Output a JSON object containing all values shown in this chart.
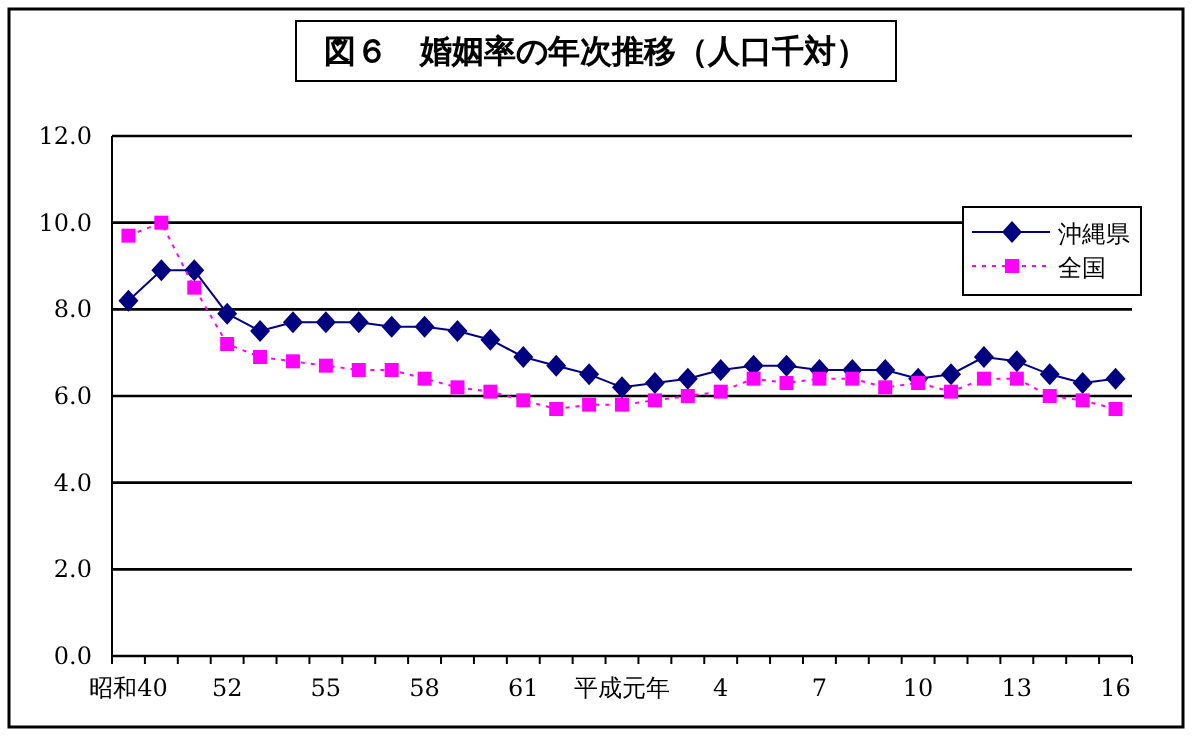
{
  "chart_data": {
    "type": "line",
    "title": "図６　婚姻率の年次推移（人口千対）",
    "categories": [
      "昭和40",
      null,
      null,
      "52",
      null,
      null,
      "55",
      null,
      null,
      "58",
      null,
      null,
      "61",
      null,
      null,
      "平成元年",
      null,
      null,
      "4",
      null,
      null,
      "7",
      null,
      null,
      "10",
      null,
      null,
      "13",
      null,
      null,
      "16"
    ],
    "series": [
      {
        "name": "沖縄県",
        "color": "#000080",
        "marker": "diamond",
        "line_style": "solid",
        "values": [
          8.2,
          8.9,
          8.9,
          7.9,
          7.5,
          7.7,
          7.7,
          7.7,
          7.6,
          7.6,
          7.5,
          7.3,
          6.9,
          6.7,
          6.5,
          6.2,
          6.3,
          6.4,
          6.6,
          6.7,
          6.7,
          6.6,
          6.6,
          6.6,
          6.4,
          6.5,
          6.9,
          6.8,
          6.5,
          6.3,
          6.4
        ]
      },
      {
        "name": "全国",
        "color": "#ff00ff",
        "marker": "square",
        "line_style": "dotted",
        "values": [
          9.7,
          10.0,
          8.5,
          7.2,
          6.9,
          6.8,
          6.7,
          6.6,
          6.6,
          6.4,
          6.2,
          6.1,
          5.9,
          5.7,
          5.8,
          5.8,
          5.9,
          6.0,
          6.1,
          6.4,
          6.3,
          6.4,
          6.4,
          6.2,
          6.3,
          6.1,
          6.4,
          6.4,
          6.0,
          5.9,
          5.7
        ]
      }
    ],
    "ylim": [
      0,
      12
    ],
    "yticks": [
      {
        "value": 0,
        "label": "0.0"
      },
      {
        "value": 2,
        "label": "2.0"
      },
      {
        "value": 4,
        "label": "4.0"
      },
      {
        "value": 6,
        "label": "6.0"
      },
      {
        "value": 8,
        "label": "8.0"
      },
      {
        "value": 10,
        "label": "10.0"
      },
      {
        "value": 12,
        "label": "12.0"
      }
    ],
    "grid": "y",
    "legend": "top right"
  }
}
